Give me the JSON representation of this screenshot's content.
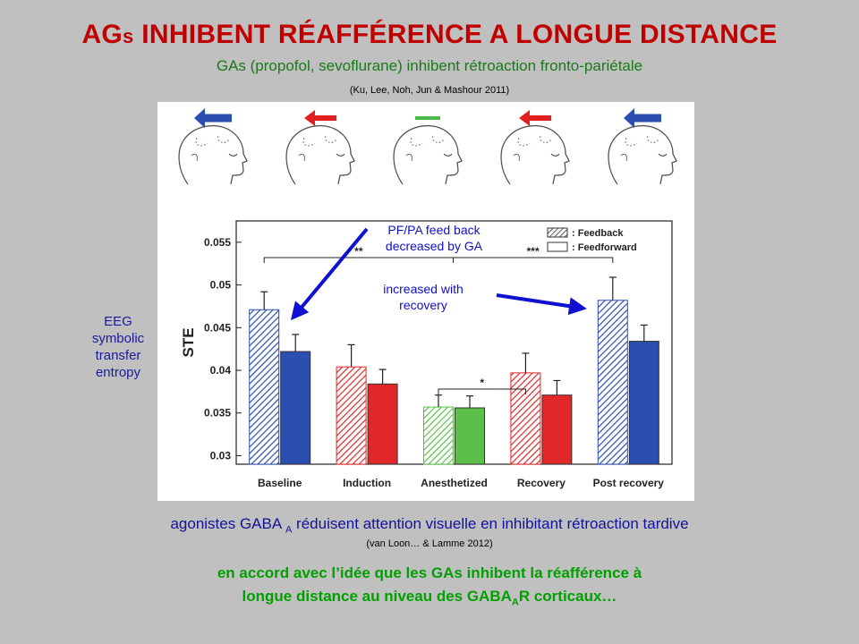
{
  "slide": {
    "title_prefix": "AG",
    "title_small": "s",
    "title_rest": " INHIBENT RÉAFFÉRENCE A LONGUE DISTANCE",
    "subtitle": "GAs (propofol, sevoflurane) inhibent rétroaction  fronto-pariétale",
    "citation": "(Ku, Lee, Noh, Jun & Mashour 2011)",
    "side_label": "EEG symbolic transfer entropy",
    "gaba_before": "agonistes GABA ",
    "gaba_sub": "A",
    "gaba_after": " réduisent attention visuelle  en inhibitant rétroaction tardive",
    "citation2": "(van Loon… & Lamme 2012)",
    "conclusion_line1": "en accord avec l’idée que les GAs inhibent la réafférence à",
    "conclusion_line2_before": "longue distance au niveau des GABA",
    "conclusion_line2_sub": "A",
    "conclusion_line2_after": "R  corticaux…"
  },
  "annotations": {
    "decreased": "PF/PA feed back decreased by GA",
    "increased": "increased with recovery"
  },
  "head_arrows": [
    {
      "direction": "left",
      "color": "#2a4fb0",
      "size": "large"
    },
    {
      "direction": "left",
      "color": "#e02020",
      "size": "medium"
    },
    {
      "direction": "none",
      "color": "#4cbb4c",
      "size": "small"
    },
    {
      "direction": "left",
      "color": "#e02020",
      "size": "medium"
    },
    {
      "direction": "left",
      "color": "#2a4fb0",
      "size": "large"
    }
  ],
  "colors": {
    "blue": "#2a4fb0",
    "red": "#e02828",
    "green": "#5cbf4a",
    "annotation_arrow": "#1010d0"
  },
  "chart_data": {
    "type": "bar",
    "categories": [
      "Baseline",
      "Induction",
      "Anesthetized",
      "Recovery",
      "Post recovery"
    ],
    "series": [
      {
        "name": ": Feedback",
        "values": [
          0.0471,
          0.0404,
          0.0357,
          0.0397,
          0.0482
        ],
        "errors": [
          0.0021,
          0.0026,
          0.0014,
          0.0023,
          0.0027
        ],
        "pattern": "hatched"
      },
      {
        "name": ": Feedforward",
        "values": [
          0.0422,
          0.0384,
          0.0356,
          0.0371,
          0.0434
        ],
        "errors": [
          0.002,
          0.0017,
          0.0014,
          0.0017,
          0.0019
        ],
        "pattern": "solid"
      }
    ],
    "category_colors": [
      "#2a4fb0",
      "#e02828",
      "#5cbf4a",
      "#e02828",
      "#2a4fb0"
    ],
    "ylabel": "STE",
    "ylim": [
      0.029,
      0.0575
    ],
    "yticks": [
      "0.03",
      "0.035",
      "0.04",
      "0.045",
      "0.05",
      "0.055"
    ],
    "significance": [
      {
        "from": 0,
        "to": 2,
        "label": "**"
      },
      {
        "from": 2,
        "to": 4,
        "label": "***"
      },
      {
        "from": 2,
        "to": 3,
        "label": "*"
      }
    ],
    "legend_position": "top-right"
  }
}
